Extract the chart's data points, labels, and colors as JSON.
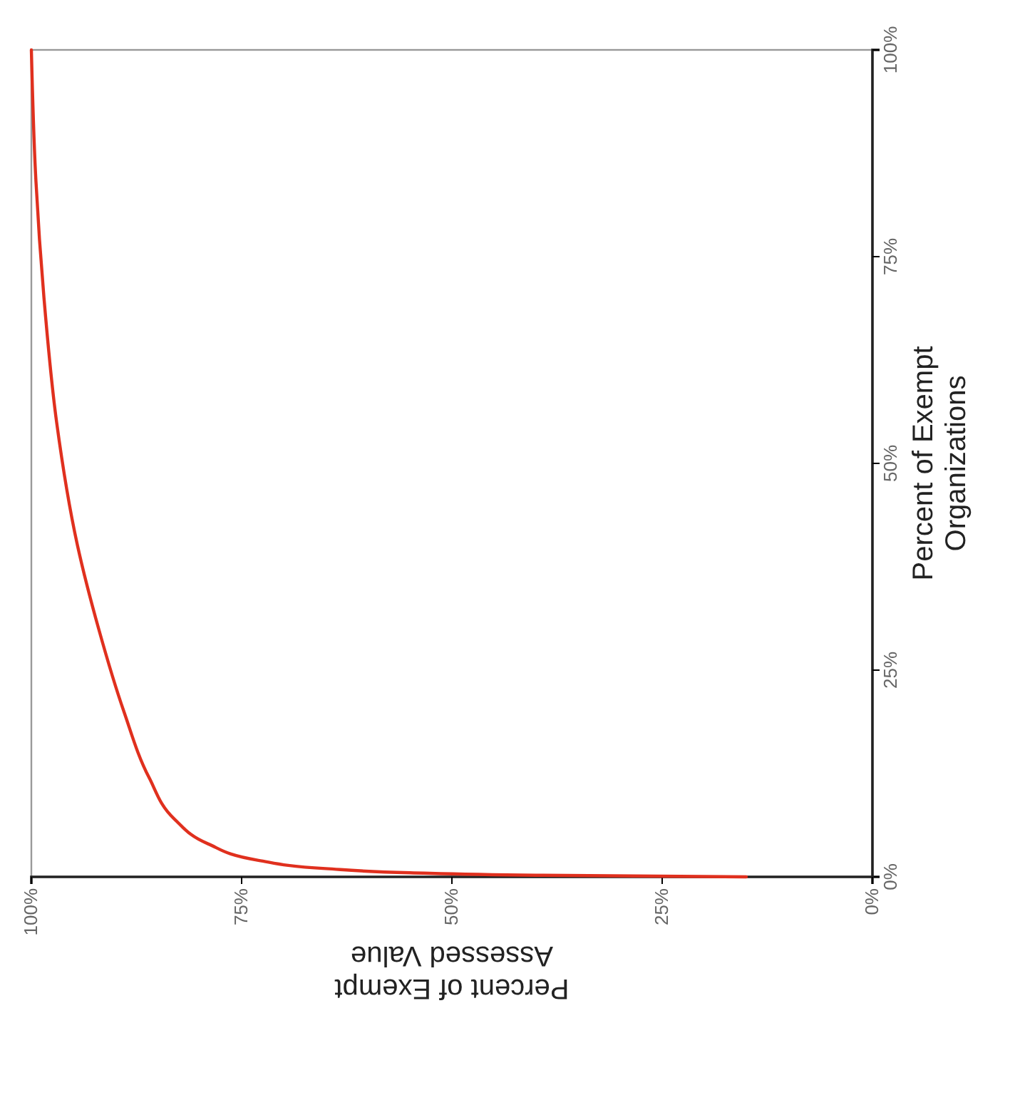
{
  "chart_data": {
    "type": "line",
    "xlabel": "Percent of Exempt Assessed Value",
    "ylabel": "Percent of Exempt Organizations",
    "x": [
      15,
      40,
      55,
      65,
      73,
      79,
      83,
      86,
      89,
      92,
      94.5,
      97,
      98.5,
      99.5,
      100
    ],
    "series": [
      {
        "color": "#e0301e",
        "values": [
          0,
          0.2,
          0.5,
          1,
          2,
          4,
          7,
          12,
          20,
          30,
          40,
          55,
          70,
          85,
          100
        ]
      }
    ],
    "xlim": [
      100,
      0
    ],
    "ylim": [
      0,
      100
    ],
    "xticks": [
      {
        "value": 100,
        "label": "100%"
      },
      {
        "value": 75,
        "label": "75%"
      },
      {
        "value": 50,
        "label": "50%"
      },
      {
        "value": 25,
        "label": "25%"
      },
      {
        "value": 0,
        "label": "0%"
      }
    ],
    "yticks": [
      {
        "value": 0,
        "label": "0%"
      },
      {
        "value": 25,
        "label": "25%"
      },
      {
        "value": 50,
        "label": "50%"
      },
      {
        "value": 75,
        "label": "75%"
      },
      {
        "value": 100,
        "label": "100%"
      }
    ]
  }
}
